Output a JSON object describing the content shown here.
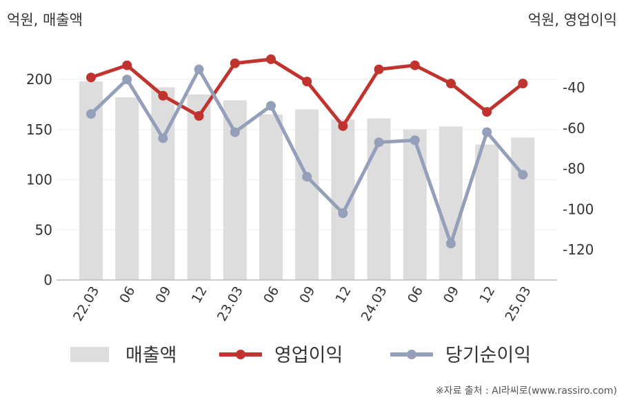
{
  "chart_data": {
    "type": "bar+line",
    "categories": [
      "22.03",
      "06",
      "09",
      "12",
      "23.03",
      "06",
      "09",
      "12",
      "24.03",
      "06",
      "09",
      "12",
      "25.03"
    ],
    "left_axis": {
      "unit_label": "억원, 매출액",
      "ylim": [
        0,
        220
      ],
      "ticks": [
        0,
        50,
        100,
        150,
        200
      ]
    },
    "right_axis": {
      "unit_label": "억원, 영업이익",
      "ylim": [
        -135,
        -10
      ],
      "ticks": [
        -40,
        -60,
        -80,
        -100,
        -120
      ]
    },
    "series": [
      {
        "name": "매출액",
        "type": "bar",
        "axis": "left",
        "color": "#dddddd",
        "values": [
          198,
          182,
          192,
          185,
          179,
          165,
          170,
          160,
          161,
          150,
          153,
          135,
          142
        ]
      },
      {
        "name": "영업이익",
        "type": "line",
        "axis": "right",
        "color": "#c0332f",
        "values": [
          -35,
          -29,
          -44,
          -54,
          -28,
          -26,
          -37,
          -59,
          -31,
          -29,
          -38,
          -52,
          -38
        ]
      },
      {
        "name": "당기순이익",
        "type": "line",
        "axis": "right",
        "color": "#94a0b9",
        "values": [
          -53,
          -36,
          -65,
          -31,
          -62,
          -49,
          -84,
          -102,
          -67,
          -66,
          -117,
          -62,
          -83
        ]
      }
    ],
    "grid": true,
    "legend_position": "bottom"
  },
  "source_note": "※자료 출처 : AI라씨로(www.rassiro.com)"
}
